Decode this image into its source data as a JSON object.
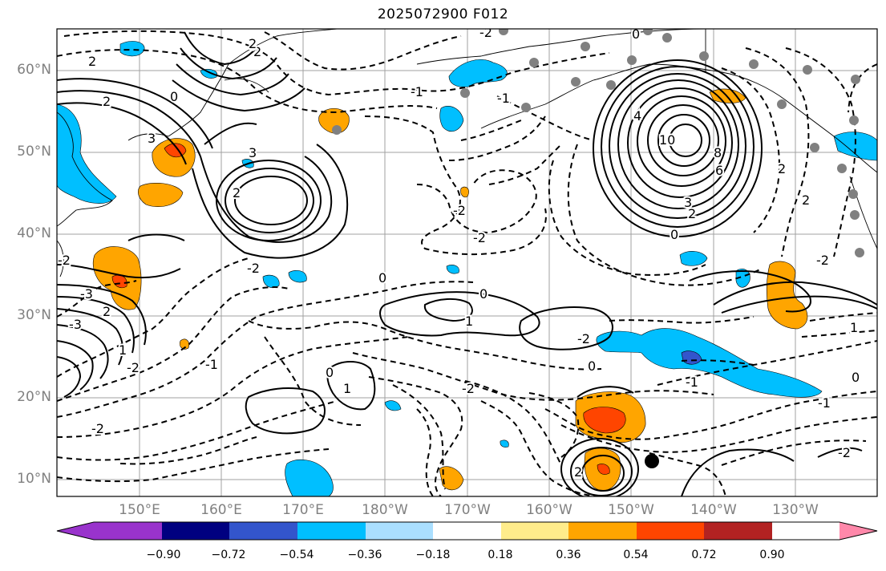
{
  "title": "2025072900 F012",
  "latitude_labels": [
    "60°N",
    "50°N",
    "40°N",
    "30°N",
    "20°N",
    "10°N"
  ],
  "longitude_labels": [
    "150°E",
    "160°E",
    "170°E",
    "180°W",
    "170°W",
    "160°W",
    "150°W",
    "140°W",
    "130°W"
  ],
  "contour_labels": [
    "2",
    "2",
    "0",
    "2",
    "-2",
    "0",
    "3",
    "3",
    "2",
    "-1",
    "4",
    "10",
    "8",
    "6",
    "3",
    "2",
    "0",
    "-1",
    "-2",
    "0",
    "0",
    "1",
    "-2",
    "0",
    "-1",
    "1",
    "0",
    "-2",
    "2",
    "2",
    "-2",
    "-2",
    "-2",
    "-2",
    "-1",
    "1",
    "0",
    "-1",
    "2",
    "-3",
    "2",
    "-2",
    "-3",
    "2",
    "-2",
    "1",
    "-2"
  ],
  "colorbar": {
    "ticks": [
      "−0.90",
      "−0.72",
      "−0.54",
      "−0.36",
      "−0.18",
      "0.18",
      "0.36",
      "0.54",
      "0.72",
      "0.90"
    ],
    "colors": [
      "#9933cc",
      "#000080",
      "#3355cc",
      "#00bfff",
      "#aadfff",
      "#ffffff",
      "#ffec8b",
      "#ffa500",
      "#ff4500",
      "#b22222",
      "#ff88aa"
    ]
  },
  "shading_colors": {
    "light_blue": "#aadfff",
    "blue": "#00bfff",
    "mid_blue": "#3355cc",
    "yellow": "#ffec8b",
    "orange": "#ffa500",
    "red_orange": "#ff4500",
    "dark_red": "#b22222"
  }
}
